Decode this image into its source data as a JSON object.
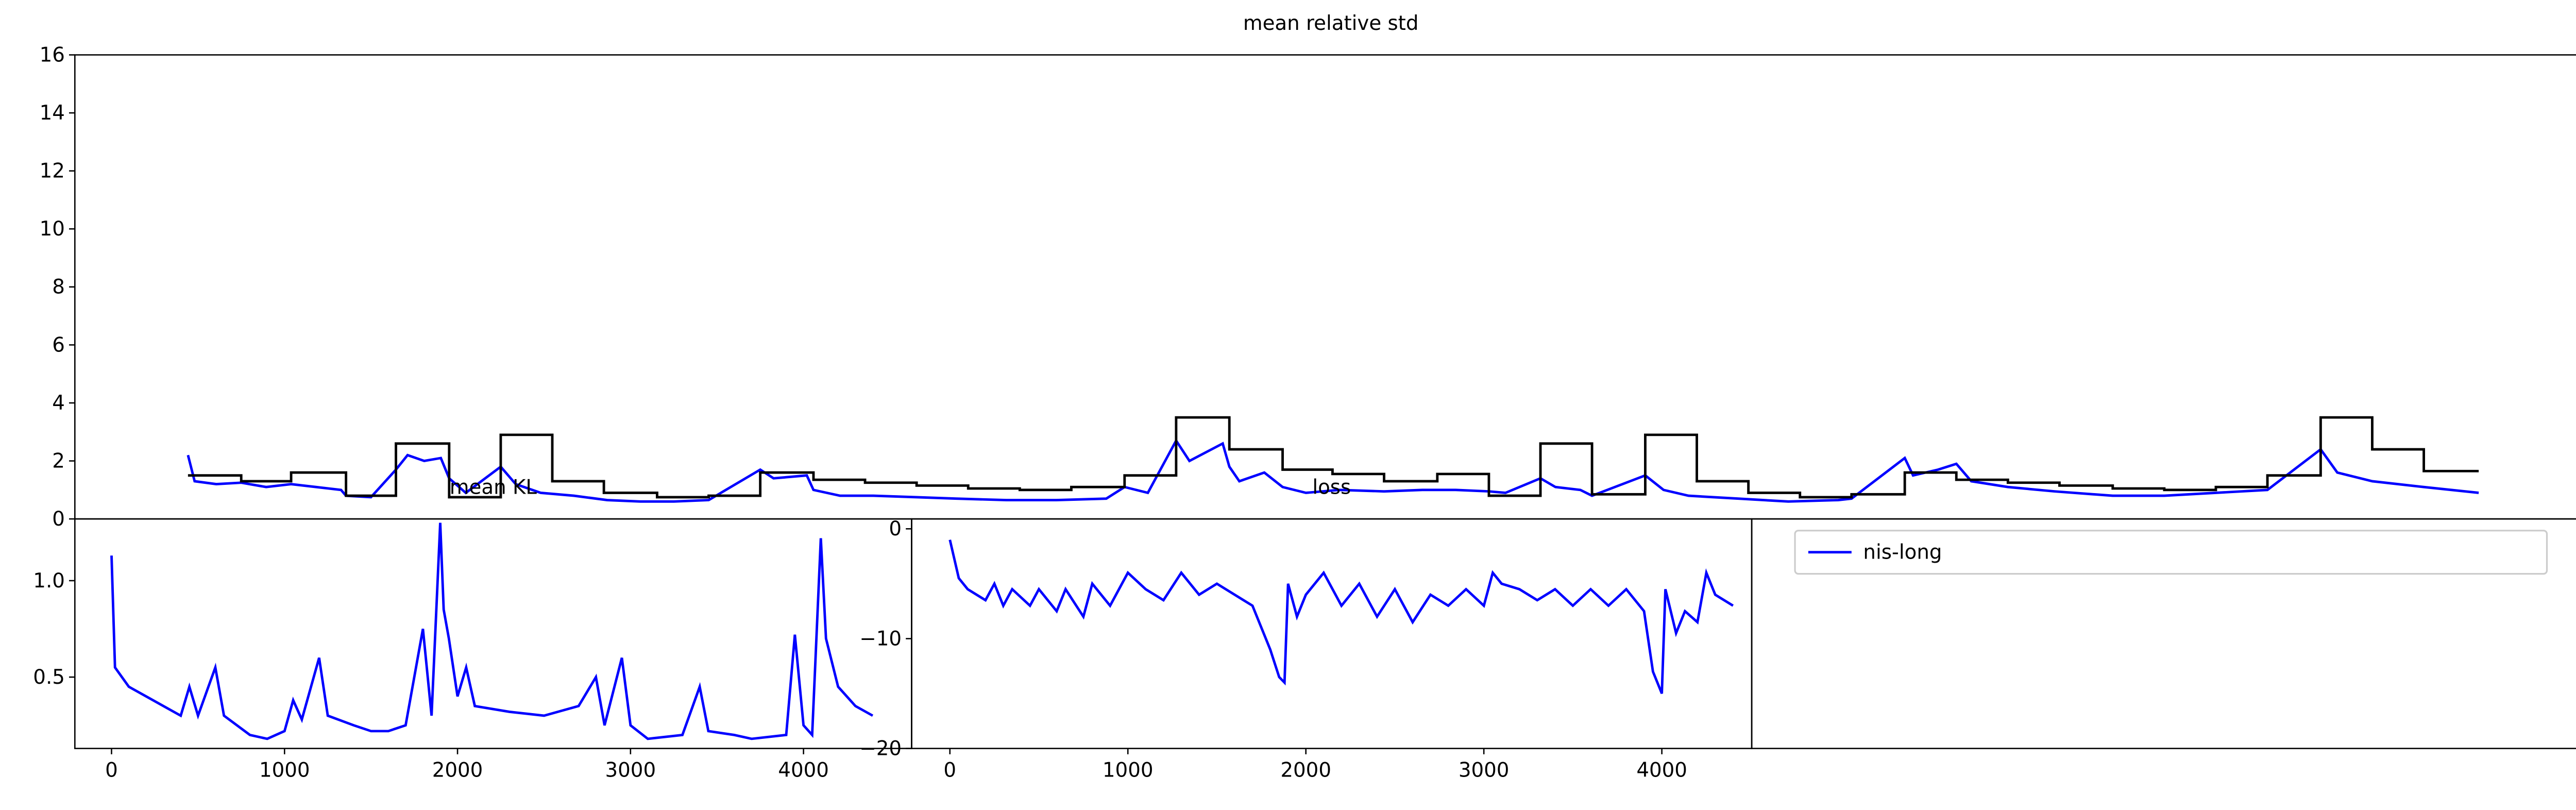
{
  "chart_data": [
    {
      "type": "line",
      "title": "mean relative std",
      "xlim": [
        0,
        1510
      ],
      "ylim": [
        0,
        16
      ],
      "yticks": [
        0,
        2,
        4,
        6,
        8,
        10,
        12,
        14,
        16
      ],
      "series": [
        {
          "color": "#0000ff",
          "x": [
            68,
            72,
            85,
            100,
            115,
            130,
            145,
            160,
            163,
            178,
            193,
            200,
            210,
            220,
            225,
            235,
            256,
            265,
            280,
            300,
            320,
            340,
            360,
            381,
            412,
            420,
            440,
            444,
            460,
            480,
            506,
            530,
            560,
            590,
            620,
            631,
            645,
            662,
            670,
            680,
            690,
            694,
            700,
            715,
            726,
            740,
            760,
            787,
            810,
            830,
            850,
            860,
            881,
            890,
            905,
            912,
            944,
            955,
            970,
            1000,
            1030,
            1060,
            1068,
            1100,
            1105,
            1120,
            1131,
            1140,
            1162,
            1190,
            1225,
            1256,
            1287,
            1318,
            1350,
            1360,
            1381,
            1412,
            1445
          ],
          "values": [
            2.2,
            1.3,
            1.2,
            1.25,
            1.1,
            1.2,
            1.1,
            1.0,
            0.8,
            0.75,
            1.7,
            2.2,
            2.0,
            2.1,
            1.4,
            0.9,
            1.8,
            1.2,
            0.9,
            0.8,
            0.65,
            0.6,
            0.6,
            0.65,
            1.7,
            1.4,
            1.5,
            1.0,
            0.8,
            0.8,
            0.75,
            0.7,
            0.65,
            0.65,
            0.7,
            1.1,
            0.9,
            2.7,
            2.0,
            2.3,
            2.6,
            1.8,
            1.3,
            1.6,
            1.1,
            0.9,
            1.0,
            0.95,
            1.0,
            1.0,
            0.95,
            0.9,
            1.4,
            1.1,
            1.0,
            0.8,
            1.5,
            1.0,
            0.8,
            0.7,
            0.6,
            0.65,
            0.7,
            2.1,
            1.5,
            1.7,
            1.9,
            1.3,
            1.1,
            0.95,
            0.8,
            0.8,
            0.9,
            1.0,
            2.4,
            1.6,
            1.3,
            1.1,
            0.9
          ]
        },
        {
          "color": "#000000",
          "drawstyle": "steps-post",
          "x": [
            68,
            100,
            130,
            163,
            193,
            225,
            256,
            287,
            318,
            350,
            381,
            412,
            444,
            475,
            506,
            537,
            568,
            599,
            631,
            662,
            694,
            726,
            756,
            787,
            819,
            850,
            881,
            912,
            944,
            975,
            1006,
            1037,
            1068,
            1100,
            1131,
            1162,
            1193,
            1225,
            1256,
            1287,
            1318,
            1350,
            1381,
            1412,
            1445
          ],
          "values": [
            1.5,
            1.3,
            1.6,
            0.8,
            2.6,
            0.75,
            2.9,
            1.3,
            0.9,
            0.75,
            0.8,
            1.6,
            1.35,
            1.25,
            1.15,
            1.05,
            1.0,
            1.1,
            1.5,
            3.5,
            2.4,
            1.7,
            1.55,
            1.3,
            1.55,
            0.8,
            2.6,
            0.85,
            2.9,
            1.3,
            0.9,
            0.75,
            0.85,
            1.6,
            1.35,
            1.25,
            1.15,
            1.05,
            1.0,
            1.1,
            1.5,
            3.5,
            2.4,
            1.65,
            1.65
          ]
        }
      ]
    },
    {
      "type": "line",
      "title": "mean KL",
      "xlim": [
        -212,
        4625
      ],
      "xticks": [
        0,
        1000,
        2000,
        3000,
        4000
      ],
      "ylim": [
        0.13,
        1.32
      ],
      "yticks": [
        0.5,
        {
          "value": 1,
          "label": "1.0"
        }
      ],
      "series": [
        {
          "color": "#0000ff",
          "x": [
            0,
            20,
            100,
            200,
            300,
            400,
            450,
            500,
            600,
            650,
            800,
            900,
            1000,
            1050,
            1100,
            1200,
            1250,
            1400,
            1500,
            1600,
            1700,
            1800,
            1850,
            1900,
            1920,
            1950,
            2000,
            2050,
            2100,
            2300,
            2500,
            2700,
            2800,
            2850,
            2950,
            3000,
            3100,
            3300,
            3400,
            3450,
            3600,
            3700,
            3900,
            3950,
            4000,
            4050,
            4100,
            4130,
            4200,
            4300,
            4400
          ],
          "values": [
            1.13,
            0.55,
            0.45,
            0.4,
            0.35,
            0.3,
            0.45,
            0.3,
            0.55,
            0.3,
            0.2,
            0.18,
            0.22,
            0.38,
            0.28,
            0.6,
            0.3,
            0.25,
            0.22,
            0.22,
            0.25,
            0.75,
            0.3,
            1.3,
            0.85,
            0.7,
            0.4,
            0.55,
            0.35,
            0.32,
            0.3,
            0.35,
            0.5,
            0.25,
            0.6,
            0.25,
            0.18,
            0.2,
            0.45,
            0.22,
            0.2,
            0.18,
            0.2,
            0.72,
            0.25,
            0.2,
            1.22,
            0.7,
            0.45,
            0.35,
            0.3
          ]
        }
      ]
    },
    {
      "type": "line",
      "title": "loss",
      "xlim": [
        -215,
        4505
      ],
      "xticks": [
        0,
        1000,
        2000,
        3000,
        4000
      ],
      "ylim": [
        -20,
        0.9
      ],
      "yticks": [
        0,
        {
          "value": -10,
          "label": "−10"
        },
        {
          "value": -20,
          "label": "−20"
        }
      ],
      "series": [
        {
          "color": "#0000ff",
          "x": [
            0,
            50,
            100,
            200,
            250,
            300,
            350,
            450,
            500,
            600,
            650,
            750,
            800,
            900,
            1000,
            1100,
            1200,
            1300,
            1400,
            1500,
            1600,
            1700,
            1800,
            1850,
            1880,
            1900,
            1950,
            2000,
            2100,
            2200,
            2300,
            2400,
            2500,
            2600,
            2700,
            2800,
            2900,
            3000,
            3050,
            3100,
            3200,
            3300,
            3400,
            3500,
            3600,
            3700,
            3800,
            3900,
            3950,
            4000,
            4020,
            4080,
            4130,
            4200,
            4250,
            4300,
            4400
          ],
          "values": [
            -1,
            -4.5,
            -5.5,
            -6.5,
            -5,
            -7,
            -5.5,
            -7,
            -5.5,
            -7.5,
            -5.5,
            -8,
            -5,
            -7,
            -4,
            -5.5,
            -6.5,
            -4,
            -6,
            -5,
            -6,
            -7,
            -11,
            -13.5,
            -14,
            -5,
            -8,
            -6,
            -4,
            -7,
            -5,
            -8,
            -5.5,
            -8.5,
            -6,
            -7,
            -5.5,
            -7,
            -4,
            -5,
            -5.5,
            -6.5,
            -5.5,
            -7,
            -5.5,
            -7,
            -5.5,
            -7.5,
            -13,
            -15,
            -5.5,
            -9.5,
            -7.5,
            -8.5,
            -4,
            -6,
            -7
          ]
        }
      ]
    },
    {
      "type": "legend",
      "series": [
        {
          "name": "nis-long",
          "color": "#0000ff"
        }
      ]
    }
  ]
}
